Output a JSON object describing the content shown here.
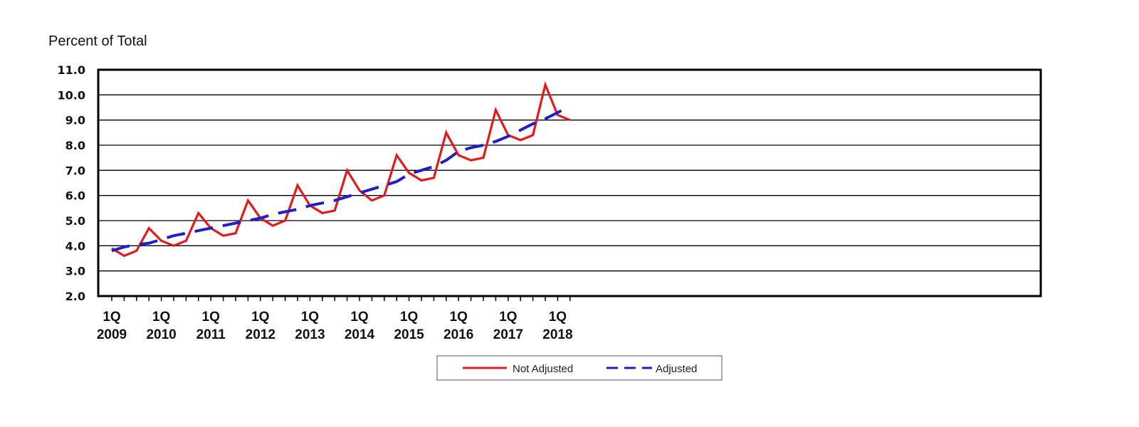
{
  "chart_data": {
    "type": "line",
    "ylabel": "Percent of Total",
    "ylim": [
      2.0,
      11.0
    ],
    "yticks": [
      "2.0",
      "3.0",
      "4.0",
      "5.0",
      "6.0",
      "7.0",
      "8.0",
      "9.0",
      "10.0",
      "11.0"
    ],
    "grid": true,
    "legend_position": "bottom-center",
    "x_tick_labels": [
      {
        "q": "1Q",
        "year": "2009"
      },
      {
        "q": "1Q",
        "year": "2010"
      },
      {
        "q": "1Q",
        "year": "2011"
      },
      {
        "q": "1Q",
        "year": "2012"
      },
      {
        "q": "1Q",
        "year": "2013"
      },
      {
        "q": "1Q",
        "year": "2014"
      },
      {
        "q": "1Q",
        "year": "2015"
      },
      {
        "q": "1Q",
        "year": "2016"
      },
      {
        "q": "1Q",
        "year": "2017"
      },
      {
        "q": "1Q",
        "year": "2018"
      }
    ],
    "series": [
      {
        "name": "Not Adjusted",
        "color": "#e31a1c",
        "style": "solid",
        "values": [
          3.9,
          3.6,
          3.8,
          4.7,
          4.2,
          4.0,
          4.2,
          5.3,
          4.7,
          4.4,
          4.5,
          5.8,
          5.1,
          4.8,
          5.0,
          6.4,
          5.6,
          5.3,
          5.4,
          7.0,
          6.2,
          5.8,
          6.0,
          7.6,
          6.9,
          6.6,
          6.7,
          8.5,
          7.6,
          7.4,
          7.5,
          9.4,
          8.4,
          8.2,
          8.4,
          10.4,
          9.2,
          9.0
        ]
      },
      {
        "name": "Adjusted",
        "color": "#1f1fc8",
        "style": "dashed",
        "values": [
          3.8,
          3.95,
          4.05,
          4.1,
          4.25,
          4.4,
          4.5,
          4.6,
          4.7,
          4.8,
          4.9,
          5.0,
          5.1,
          5.25,
          5.35,
          5.45,
          5.6,
          5.7,
          5.8,
          5.95,
          6.1,
          6.25,
          6.4,
          6.55,
          6.85,
          7.0,
          7.15,
          7.4,
          7.75,
          7.9,
          8.0,
          8.15,
          8.35,
          8.6,
          8.85,
          9.05,
          9.3,
          9.55
        ]
      }
    ]
  }
}
